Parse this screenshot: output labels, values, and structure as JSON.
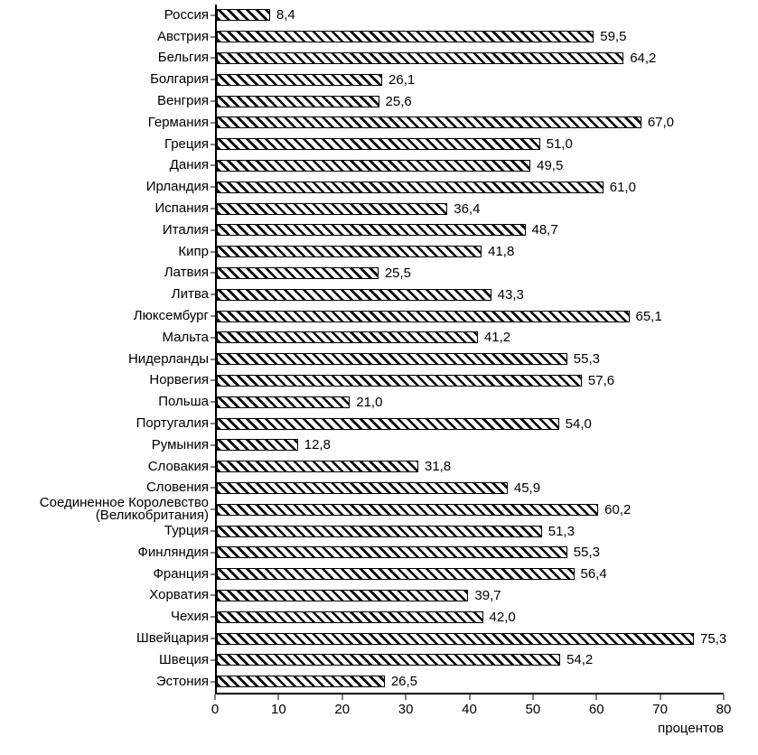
{
  "chart_data": {
    "type": "bar",
    "orientation": "horizontal",
    "xlabel": "процентов",
    "xlim": [
      0,
      80
    ],
    "xticks": [
      0,
      10,
      20,
      30,
      40,
      50,
      60,
      70,
      80
    ],
    "grid": false,
    "legend": false,
    "bar_style": "diagonal-hatch",
    "categories": [
      "Россия",
      "Австрия",
      "Бельгия",
      "Болгария",
      "Венгрия",
      "Германия",
      "Греция",
      "Дания",
      "Ирландия",
      "Испания",
      "Италия",
      "Кипр",
      "Латвия",
      "Литва",
      "Люксембург",
      "Мальта",
      "Нидерланды",
      "Норвегия",
      "Польша",
      "Португалия",
      "Румыния",
      "Словакия",
      "Словения",
      "Соединенное Королевство (Великобритания)",
      "Турция",
      "Финляндия",
      "Франция",
      "Хорватия",
      "Чехия",
      "Швейцария",
      "Швеция",
      "Эстония"
    ],
    "values": [
      8.4,
      59.5,
      64.2,
      26.1,
      25.6,
      67.0,
      51.0,
      49.5,
      61.0,
      36.4,
      48.7,
      41.8,
      25.5,
      43.3,
      65.1,
      41.2,
      55.3,
      57.6,
      21.0,
      54.0,
      12.8,
      31.8,
      45.9,
      60.2,
      51.3,
      55.3,
      56.4,
      39.7,
      42.0,
      75.3,
      54.2,
      26.5
    ],
    "value_labels": [
      "8,4",
      "59,5",
      "64,2",
      "26,1",
      "25,6",
      "67,0",
      "51,0",
      "49,5",
      "61,0",
      "36,4",
      "48,7",
      "41,8",
      "25,5",
      "43,3",
      "65,1",
      "41,2",
      "55,3",
      "57,6",
      "21,0",
      "54,0",
      "12,8",
      "31,8",
      "45,9",
      "60,2",
      "51,3",
      "55,3",
      "56,4",
      "39,7",
      "42,0",
      "75,3",
      "54,2",
      "26,5"
    ]
  }
}
